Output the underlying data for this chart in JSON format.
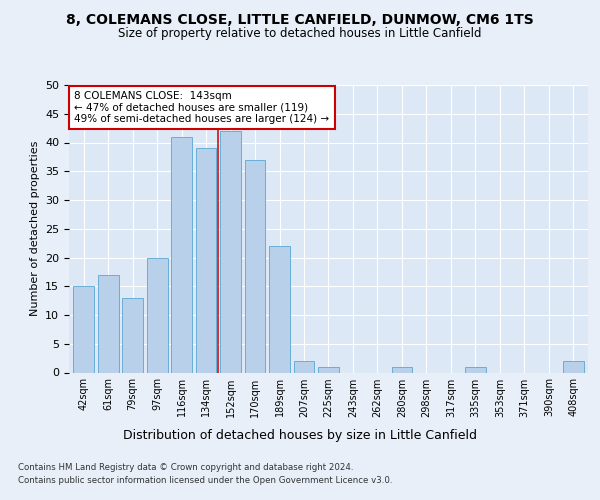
{
  "title1": "8, COLEMANS CLOSE, LITTLE CANFIELD, DUNMOW, CM6 1TS",
  "title2": "Size of property relative to detached houses in Little Canfield",
  "xlabel": "Distribution of detached houses by size in Little Canfield",
  "ylabel": "Number of detached properties",
  "categories": [
    "42sqm",
    "61sqm",
    "79sqm",
    "97sqm",
    "116sqm",
    "134sqm",
    "152sqm",
    "170sqm",
    "189sqm",
    "207sqm",
    "225sqm",
    "243sqm",
    "262sqm",
    "280sqm",
    "298sqm",
    "317sqm",
    "335sqm",
    "353sqm",
    "371sqm",
    "390sqm",
    "408sqm"
  ],
  "values": [
    15,
    17,
    13,
    20,
    41,
    39,
    42,
    37,
    22,
    2,
    1,
    0,
    0,
    1,
    0,
    0,
    1,
    0,
    0,
    0,
    2
  ],
  "bar_color": "#b8d0ea",
  "bar_edge_color": "#6aaed6",
  "bar_width": 0.85,
  "vline_x": 5.5,
  "vline_color": "#cc0000",
  "annotation_text": "8 COLEMANS CLOSE:  143sqm\n← 47% of detached houses are smaller (119)\n49% of semi-detached houses are larger (124) →",
  "annotation_box_color": "#ffffff",
  "annotation_box_edge": "#cc0000",
  "footer1": "Contains HM Land Registry data © Crown copyright and database right 2024.",
  "footer2": "Contains public sector information licensed under the Open Government Licence v3.0.",
  "bg_color": "#e8eff8",
  "plot_bg_color": "#dce8f5",
  "ylim": [
    0,
    50
  ],
  "yticks": [
    0,
    5,
    10,
    15,
    20,
    25,
    30,
    35,
    40,
    45,
    50
  ]
}
